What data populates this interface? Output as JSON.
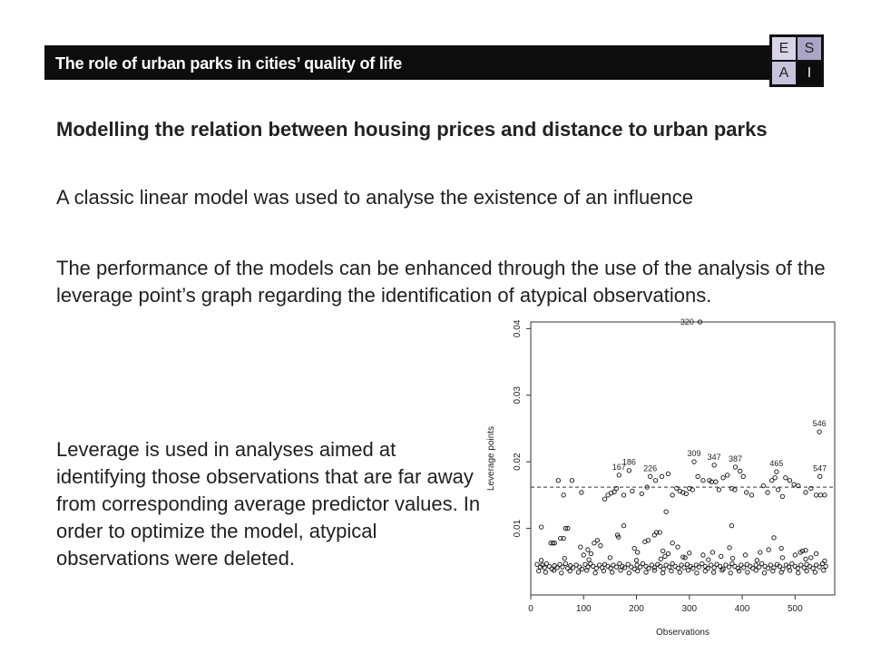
{
  "header": {
    "title": "The role of urban parks in cities’ quality of life",
    "logo": {
      "letters": [
        "E",
        "S",
        "A",
        "I"
      ]
    }
  },
  "heading": "Modelling the relation between housing prices and distance to urban parks",
  "paragraphs": {
    "p1": "A classic linear model was used to analyse the existence of an influence",
    "p2": "The performance of the models can be enhanced through the use of the analysis of the leverage point’s graph regarding the identification of atypical observations.",
    "p3": "Leverage is used in analyses aimed at identifying those observations that are far away from corresponding average predictor values. In order to optimize the model, atypical observations were deleted."
  },
  "chart_data": {
    "type": "scatter",
    "title": "",
    "xlabel": "Observations",
    "ylabel": "Leverage points",
    "xlim": [
      0,
      575
    ],
    "ylim": [
      0,
      0.041
    ],
    "xticks": [
      0,
      100,
      200,
      300,
      400,
      500
    ],
    "yticks": [
      0.01,
      0.02,
      0.03,
      0.04
    ],
    "ytick_labels": [
      "0.01",
      "0.02",
      "0.03",
      "0.04"
    ],
    "threshold": 0.0162,
    "grid": false,
    "labeled_points": [
      {
        "label": "320",
        "x": 320,
        "y": 0.041
      },
      {
        "label": "546",
        "x": 546,
        "y": 0.0245
      },
      {
        "label": "309",
        "x": 309,
        "y": 0.02
      },
      {
        "label": "347",
        "x": 347,
        "y": 0.0195
      },
      {
        "label": "387",
        "x": 387,
        "y": 0.0192
      },
      {
        "label": "186",
        "x": 186,
        "y": 0.0187
      },
      {
        "label": "465",
        "x": 465,
        "y": 0.0185
      },
      {
        "label": "167",
        "x": 167,
        "y": 0.018
      },
      {
        "label": "226",
        "x": 226,
        "y": 0.0178
      },
      {
        "label": "547",
        "x": 547,
        "y": 0.0178
      }
    ],
    "points": [
      [
        12,
        0.0046
      ],
      [
        18,
        0.0042
      ],
      [
        22,
        0.0045
      ],
      [
        26,
        0.0041
      ],
      [
        30,
        0.0047
      ],
      [
        35,
        0.0043
      ],
      [
        40,
        0.0039
      ],
      [
        45,
        0.0044
      ],
      [
        50,
        0.0041
      ],
      [
        55,
        0.0046
      ],
      [
        60,
        0.0042
      ],
      [
        66,
        0.0047
      ],
      [
        70,
        0.004
      ],
      [
        75,
        0.0044
      ],
      [
        80,
        0.0041
      ],
      [
        86,
        0.0045
      ],
      [
        92,
        0.0042
      ],
      [
        97,
        0.0039
      ],
      [
        103,
        0.0046
      ],
      [
        108,
        0.0042
      ],
      [
        113,
        0.0047
      ],
      [
        118,
        0.0043
      ],
      [
        124,
        0.004
      ],
      [
        130,
        0.0045
      ],
      [
        135,
        0.0041
      ],
      [
        140,
        0.0046
      ],
      [
        146,
        0.0043
      ],
      [
        151,
        0.004
      ],
      [
        156,
        0.0045
      ],
      [
        162,
        0.0042
      ],
      [
        168,
        0.0047
      ],
      [
        173,
        0.0043
      ],
      [
        178,
        0.0041
      ],
      [
        184,
        0.0046
      ],
      [
        190,
        0.0042
      ],
      [
        196,
        0.0039
      ],
      [
        201,
        0.0045
      ],
      [
        207,
        0.0042
      ],
      [
        212,
        0.0047
      ],
      [
        218,
        0.0043
      ],
      [
        223,
        0.004
      ],
      [
        229,
        0.0045
      ],
      [
        234,
        0.0041
      ],
      [
        240,
        0.0046
      ],
      [
        245,
        0.0043
      ],
      [
        251,
        0.0039
      ],
      [
        256,
        0.0045
      ],
      [
        262,
        0.0042
      ],
      [
        268,
        0.0047
      ],
      [
        273,
        0.0043
      ],
      [
        279,
        0.004
      ],
      [
        285,
        0.0045
      ],
      [
        290,
        0.0041
      ],
      [
        296,
        0.0046
      ],
      [
        302,
        0.0043
      ],
      [
        307,
        0.004
      ],
      [
        313,
        0.0045
      ],
      [
        318,
        0.0042
      ],
      [
        324,
        0.0047
      ],
      [
        330,
        0.0043
      ],
      [
        335,
        0.004
      ],
      [
        341,
        0.0045
      ],
      [
        347,
        0.0041
      ],
      [
        352,
        0.0046
      ],
      [
        358,
        0.0043
      ],
      [
        364,
        0.0039
      ],
      [
        369,
        0.0045
      ],
      [
        375,
        0.0042
      ],
      [
        381,
        0.0047
      ],
      [
        386,
        0.0043
      ],
      [
        392,
        0.004
      ],
      [
        398,
        0.0045
      ],
      [
        403,
        0.0041
      ],
      [
        409,
        0.0046
      ],
      [
        415,
        0.0043
      ],
      [
        420,
        0.004
      ],
      [
        426,
        0.0045
      ],
      [
        432,
        0.0042
      ],
      [
        437,
        0.0047
      ],
      [
        443,
        0.0043
      ],
      [
        449,
        0.004
      ],
      [
        454,
        0.0045
      ],
      [
        460,
        0.0041
      ],
      [
        466,
        0.0046
      ],
      [
        471,
        0.0043
      ],
      [
        477,
        0.0039
      ],
      [
        483,
        0.0045
      ],
      [
        488,
        0.0042
      ],
      [
        494,
        0.0047
      ],
      [
        500,
        0.0043
      ],
      [
        505,
        0.004
      ],
      [
        511,
        0.0045
      ],
      [
        517,
        0.0041
      ],
      [
        522,
        0.0046
      ],
      [
        528,
        0.0043
      ],
      [
        534,
        0.004
      ],
      [
        540,
        0.0045
      ],
      [
        546,
        0.0042
      ],
      [
        552,
        0.0047
      ],
      [
        558,
        0.0043
      ],
      [
        15,
        0.0036
      ],
      [
        28,
        0.0034
      ],
      [
        44,
        0.0037
      ],
      [
        58,
        0.0033
      ],
      [
        74,
        0.0036
      ],
      [
        90,
        0.0034
      ],
      [
        106,
        0.0037
      ],
      [
        122,
        0.0033
      ],
      [
        138,
        0.0036
      ],
      [
        154,
        0.0034
      ],
      [
        170,
        0.0037
      ],
      [
        186,
        0.0033
      ],
      [
        202,
        0.0036
      ],
      [
        218,
        0.0034
      ],
      [
        234,
        0.0037
      ],
      [
        250,
        0.0033
      ],
      [
        266,
        0.0036
      ],
      [
        282,
        0.0034
      ],
      [
        298,
        0.0037
      ],
      [
        314,
        0.0033
      ],
      [
        330,
        0.0036
      ],
      [
        346,
        0.0034
      ],
      [
        362,
        0.0037
      ],
      [
        378,
        0.0033
      ],
      [
        394,
        0.0036
      ],
      [
        410,
        0.0034
      ],
      [
        426,
        0.0037
      ],
      [
        442,
        0.0033
      ],
      [
        458,
        0.0036
      ],
      [
        474,
        0.0034
      ],
      [
        490,
        0.0037
      ],
      [
        506,
        0.0033
      ],
      [
        522,
        0.0036
      ],
      [
        538,
        0.0034
      ],
      [
        554,
        0.0037
      ],
      [
        20,
        0.0052
      ],
      [
        64,
        0.0055
      ],
      [
        110,
        0.0053
      ],
      [
        150,
        0.0056
      ],
      [
        200,
        0.0052
      ],
      [
        246,
        0.0054
      ],
      [
        288,
        0.0057
      ],
      [
        336,
        0.0053
      ],
      [
        382,
        0.0055
      ],
      [
        428,
        0.0052
      ],
      [
        476,
        0.0056
      ],
      [
        520,
        0.0054
      ],
      [
        556,
        0.0051
      ],
      [
        38,
        0.0078
      ],
      [
        42,
        0.0078
      ],
      [
        45,
        0.0078
      ],
      [
        56,
        0.0085
      ],
      [
        62,
        0.0085
      ],
      [
        66,
        0.01
      ],
      [
        70,
        0.01
      ],
      [
        94,
        0.0072
      ],
      [
        100,
        0.006
      ],
      [
        108,
        0.0068
      ],
      [
        114,
        0.0062
      ],
      [
        120,
        0.0078
      ],
      [
        126,
        0.0082
      ],
      [
        132,
        0.0074
      ],
      [
        164,
        0.009
      ],
      [
        166,
        0.0087
      ],
      [
        196,
        0.007
      ],
      [
        202,
        0.0064
      ],
      [
        216,
        0.008
      ],
      [
        222,
        0.0082
      ],
      [
        234,
        0.009
      ],
      [
        238,
        0.0094
      ],
      [
        244,
        0.0094
      ],
      [
        250,
        0.0066
      ],
      [
        254,
        0.0058
      ],
      [
        260,
        0.0062
      ],
      [
        268,
        0.0078
      ],
      [
        278,
        0.0072
      ],
      [
        292,
        0.0056
      ],
      [
        300,
        0.0063
      ],
      [
        326,
        0.006
      ],
      [
        344,
        0.0064
      ],
      [
        360,
        0.0058
      ],
      [
        376,
        0.0071
      ],
      [
        380,
        0.0104
      ],
      [
        406,
        0.006
      ],
      [
        434,
        0.0064
      ],
      [
        450,
        0.0068
      ],
      [
        460,
        0.0086
      ],
      [
        474,
        0.007
      ],
      [
        500,
        0.006
      ],
      [
        510,
        0.0064
      ],
      [
        514,
        0.0066
      ],
      [
        520,
        0.0067
      ],
      [
        530,
        0.0056
      ],
      [
        540,
        0.0062
      ],
      [
        20,
        0.0102
      ],
      [
        52,
        0.0172
      ],
      [
        62,
        0.015
      ],
      [
        78,
        0.0172
      ],
      [
        96,
        0.0154
      ],
      [
        140,
        0.0144
      ],
      [
        146,
        0.015
      ],
      [
        152,
        0.0153
      ],
      [
        158,
        0.0155
      ],
      [
        162,
        0.016
      ],
      [
        176,
        0.015
      ],
      [
        192,
        0.0156
      ],
      [
        210,
        0.0152
      ],
      [
        220,
        0.0162
      ],
      [
        236,
        0.0172
      ],
      [
        248,
        0.0178
      ],
      [
        260,
        0.0182
      ],
      [
        268,
        0.015
      ],
      [
        276,
        0.016
      ],
      [
        282,
        0.0156
      ],
      [
        288,
        0.0154
      ],
      [
        294,
        0.0152
      ],
      [
        300,
        0.016
      ],
      [
        306,
        0.0158
      ],
      [
        316,
        0.0178
      ],
      [
        326,
        0.0172
      ],
      [
        338,
        0.0172
      ],
      [
        342,
        0.017
      ],
      [
        350,
        0.017
      ],
      [
        356,
        0.0158
      ],
      [
        364,
        0.0176
      ],
      [
        372,
        0.018
      ],
      [
        380,
        0.016
      ],
      [
        386,
        0.0158
      ],
      [
        396,
        0.0186
      ],
      [
        402,
        0.0178
      ],
      [
        408,
        0.0154
      ],
      [
        418,
        0.015
      ],
      [
        440,
        0.0164
      ],
      [
        448,
        0.0154
      ],
      [
        456,
        0.0172
      ],
      [
        462,
        0.0176
      ],
      [
        468,
        0.0158
      ],
      [
        476,
        0.0148
      ],
      [
        482,
        0.0176
      ],
      [
        490,
        0.0172
      ],
      [
        498,
        0.0166
      ],
      [
        506,
        0.0164
      ],
      [
        520,
        0.0154
      ],
      [
        530,
        0.016
      ],
      [
        540,
        0.015
      ],
      [
        548,
        0.015
      ],
      [
        556,
        0.015
      ],
      [
        256,
        0.0125
      ],
      [
        176,
        0.0104
      ]
    ]
  }
}
